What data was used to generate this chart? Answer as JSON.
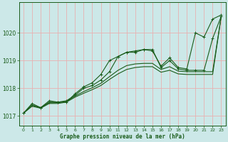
{
  "title": "Graphe pression niveau de la mer (hPa)",
  "bg_color": "#cce8e8",
  "grid_color": "#e8b0b0",
  "line_color": "#1a5c1a",
  "xlim": [
    -0.5,
    23.5
  ],
  "ylim": [
    1016.65,
    1021.1
  ],
  "yticks": [
    1017,
    1018,
    1019,
    1020
  ],
  "xticks": [
    0,
    1,
    2,
    3,
    4,
    5,
    6,
    7,
    8,
    9,
    10,
    11,
    12,
    13,
    14,
    15,
    16,
    17,
    18,
    19,
    20,
    21,
    22,
    23
  ],
  "curve1_y": [
    1017.1,
    1017.45,
    1017.3,
    1017.55,
    1017.5,
    1017.5,
    1017.8,
    1018.05,
    1018.2,
    1018.5,
    1019.0,
    1019.15,
    1019.3,
    1019.3,
    1019.4,
    1019.35,
    1018.8,
    1019.1,
    1018.75,
    1018.7,
    1020.0,
    1019.85,
    1020.5,
    1020.65
  ],
  "curve2_y": [
    1017.1,
    1017.4,
    1017.3,
    1017.5,
    1017.5,
    1017.55,
    1017.75,
    1018.0,
    1018.1,
    1018.3,
    1018.6,
    1019.15,
    1019.3,
    1019.35,
    1019.4,
    1019.4,
    1018.75,
    1019.0,
    1018.7,
    1018.65,
    1018.65,
    1018.65,
    1019.8,
    1020.6
  ],
  "curve3_y": [
    1017.1,
    1017.38,
    1017.3,
    1017.48,
    1017.48,
    1017.52,
    1017.72,
    1017.88,
    1018.02,
    1018.18,
    1018.42,
    1018.65,
    1018.82,
    1018.88,
    1018.9,
    1018.9,
    1018.68,
    1018.78,
    1018.62,
    1018.6,
    1018.6,
    1018.6,
    1018.6,
    1020.6
  ],
  "curve4_y": [
    1017.1,
    1017.35,
    1017.28,
    1017.45,
    1017.45,
    1017.5,
    1017.68,
    1017.82,
    1017.95,
    1018.1,
    1018.32,
    1018.52,
    1018.68,
    1018.75,
    1018.78,
    1018.78,
    1018.58,
    1018.65,
    1018.52,
    1018.5,
    1018.5,
    1018.5,
    1018.5,
    1020.6
  ]
}
